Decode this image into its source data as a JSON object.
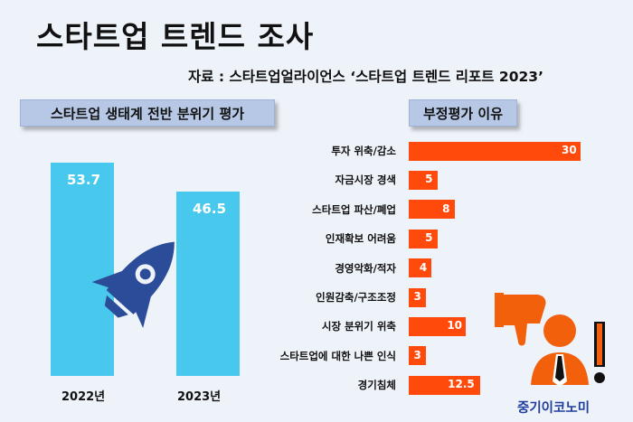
{
  "title": "스타트업 트렌드 조사",
  "source": "자료 : 스타트업얼라이언스   ‘스타트업 트렌드 리포트 2023’",
  "brand": "중기이코노미",
  "icons": [
    "rocket-icon",
    "thumbs-down-icon",
    "person-icon",
    "exclamation-icon"
  ],
  "colors": {
    "background": "#eef2f9",
    "vertical_bar": "#48c8ec",
    "horizontal_bar": "#ff4a0b",
    "label_box": "#b7c8e6",
    "brand": "#1f3f9e"
  },
  "chart_data": [
    {
      "type": "bar",
      "title": "스타트업 생태계 전반 분위기 평가",
      "categories": [
        "2022년",
        "2023년"
      ],
      "values": [
        53.7,
        46.5
      ],
      "value_labels": [
        "53.7",
        "46.5"
      ],
      "ylim": [
        0,
        60
      ]
    },
    {
      "type": "bar",
      "orientation": "horizontal",
      "title": "부정평가 이유",
      "categories": [
        "투자 위축/감소",
        "자금시장 경색",
        "스타트업 파산/폐업",
        "인재확보 어려움",
        "경영악화/적자",
        "인원감축/구조조정",
        "시장 분위기 위축",
        "스타트업에 대한 나쁜 인식",
        "경기침체"
      ],
      "values": [
        30,
        5,
        8,
        5,
        4,
        3,
        10,
        3,
        12.5
      ],
      "value_labels": [
        "30",
        "5",
        "8",
        "5",
        "4",
        "3",
        "10",
        "3",
        "12.5"
      ]
    }
  ]
}
